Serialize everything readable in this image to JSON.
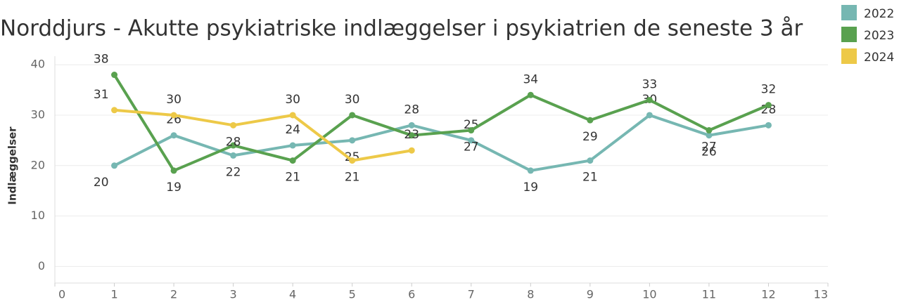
{
  "chart_data": {
    "type": "line",
    "title": "Norddjurs - Akutte psykiatriske indlæggelser i psykiatrien de seneste 3 år",
    "y_label": "Indlæggelser",
    "series": [
      {
        "name": "2022",
        "color": "#76b7b2",
        "x": [
          1,
          2,
          3,
          4,
          5,
          6,
          7,
          8,
          9,
          10,
          11,
          12
        ],
        "values": [
          20,
          26,
          22,
          24,
          25,
          28,
          25,
          19,
          21,
          30,
          26,
          28
        ]
      },
      {
        "name": "2023",
        "color": "#59a14f",
        "x": [
          1,
          2,
          3,
          4,
          5,
          6,
          7,
          8,
          9,
          10,
          11,
          12
        ],
        "values": [
          38,
          19,
          24,
          21,
          30,
          26,
          27,
          34,
          29,
          33,
          27,
          32
        ],
        "value_labels": [
          "38",
          "19",
          null,
          "21",
          "30",
          null,
          "27",
          "34",
          "29",
          "33",
          "27",
          "32"
        ]
      },
      {
        "name": "2024",
        "color": "#edc948",
        "x": [
          1,
          2,
          3,
          4,
          5,
          6
        ],
        "values": [
          31,
          30,
          28,
          30,
          21,
          23
        ]
      }
    ],
    "xlim": [
      0,
      13
    ],
    "xticks": [
      0,
      1,
      2,
      3,
      4,
      5,
      6,
      7,
      8,
      9,
      10,
      11,
      12,
      13
    ],
    "ylim": [
      -3.3,
      41.7
    ],
    "yticks": [
      0,
      10,
      20,
      30,
      40
    ],
    "grid": true,
    "legend": "top-right"
  }
}
